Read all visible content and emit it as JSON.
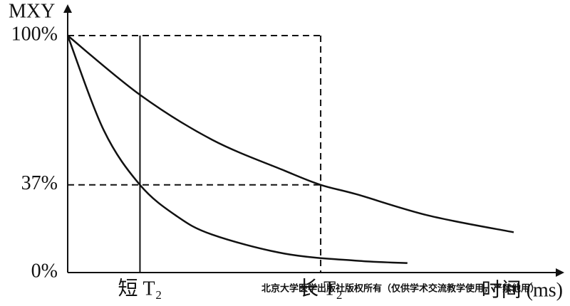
{
  "chart_data": {
    "type": "line",
    "y_label": "MXY",
    "x_label": "时间 (ms)",
    "watermark": "北京大学医学出版社版权所有（仅供学术交流教学使用，严禁他用）",
    "xlim": [
      0,
      6.9
    ],
    "ylim": [
      0,
      100
    ],
    "xticks": [
      {
        "value": 1,
        "label": "短 T₂"
      },
      {
        "value": 3.5,
        "label": "长 T₂"
      }
    ],
    "yticks": [
      {
        "value": 0,
        "label": "0%"
      },
      {
        "value": 37,
        "label": "37%"
      },
      {
        "value": 100,
        "label": "100%"
      }
    ],
    "series": [
      {
        "color": "#111111",
        "x": [
          0,
          0.5,
          1,
          1.5,
          2,
          3,
          4,
          4.7
        ],
        "values": [
          100,
          60,
          37,
          24,
          16,
          8,
          5,
          4
        ]
      },
      {
        "color": "#111111",
        "x": [
          0,
          1,
          2,
          3,
          3.5,
          4,
          5,
          6.17
        ],
        "values": [
          100,
          75,
          56,
          43,
          37,
          33,
          24,
          17
        ]
      }
    ]
  }
}
